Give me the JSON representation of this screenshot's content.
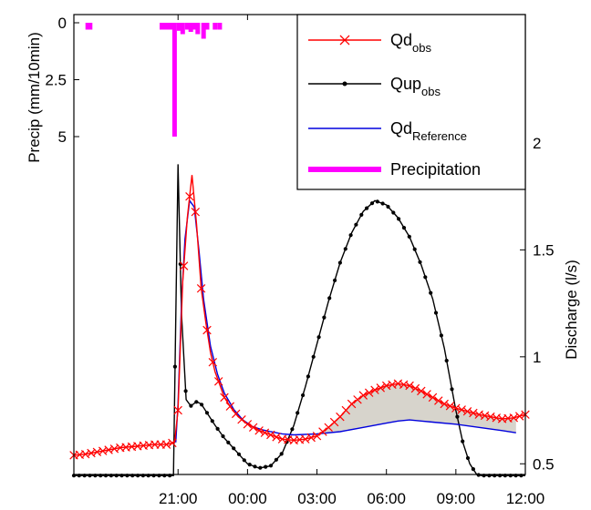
{
  "chart_data": {
    "type": "line",
    "x_axis": {
      "ticks": [
        "21:00",
        "00:00",
        "03:00",
        "06:00",
        "09:00",
        "12:00"
      ],
      "tick_hours": [
        21,
        24,
        27,
        30,
        33,
        36
      ],
      "range_hours": [
        16.5,
        36
      ]
    },
    "y_left": {
      "label": "Precip (mm/10min)",
      "ticks": [
        0,
        2.5,
        5
      ],
      "tick_labels": [
        "0",
        "2.5",
        "5"
      ],
      "reversed": true,
      "range": [
        0,
        5
      ]
    },
    "y_right": {
      "label": "Discharge (l/s)",
      "ticks": [
        0.5,
        1,
        1.5,
        2
      ],
      "tick_labels": [
        "0.5",
        "1",
        "1.5",
        "2"
      ],
      "range": [
        0.45,
        2.6
      ]
    },
    "legend": {
      "position": "top-right",
      "entries": [
        {
          "base": "Qd",
          "sub": "obs"
        },
        {
          "base": "Qup",
          "sub": "obs"
        },
        {
          "base": "Qd",
          "sub": "Reference"
        },
        {
          "base": "Precipitation",
          "sub": ""
        }
      ]
    },
    "colors": {
      "qd_obs": "#ff0000",
      "qup_obs": "#000000",
      "qd_reference": "#0000dd",
      "precipitation": "#ff00ff",
      "shading": "#d7d4cc"
    },
    "shading": {
      "from_hour": 27.0,
      "to_hour": 35.6
    },
    "series": [
      {
        "key": "qd_obs",
        "marker": "x",
        "x": [
          16.5,
          17.0,
          17.5,
          18.0,
          18.5,
          19.0,
          19.5,
          20.0,
          20.5,
          20.85,
          21.0,
          21.2,
          21.4,
          21.6,
          21.8,
          22.0,
          22.2,
          22.4,
          22.6,
          22.8,
          23.0,
          23.3,
          23.6,
          24.0,
          24.5,
          25.0,
          25.5,
          26.0,
          26.5,
          27.0,
          27.5,
          28.0,
          28.5,
          29.0,
          29.5,
          30.0,
          30.5,
          31.0,
          31.5,
          32.0,
          32.5,
          33.0,
          33.5,
          34.0,
          34.5,
          35.0,
          35.5,
          36.0
        ],
        "y": [
          0.54,
          0.545,
          0.555,
          0.565,
          0.575,
          0.58,
          0.585,
          0.59,
          0.59,
          0.6,
          0.75,
          1.35,
          1.65,
          1.85,
          1.62,
          1.32,
          1.16,
          1.02,
          0.93,
          0.87,
          0.81,
          0.76,
          0.72,
          0.685,
          0.655,
          0.635,
          0.615,
          0.61,
          0.615,
          0.63,
          0.67,
          0.72,
          0.78,
          0.82,
          0.845,
          0.865,
          0.875,
          0.865,
          0.84,
          0.81,
          0.78,
          0.76,
          0.745,
          0.73,
          0.72,
          0.71,
          0.715,
          0.73
        ]
      },
      {
        "key": "qup_obs",
        "marker": "dot",
        "x": [
          16.5,
          20.3,
          20.8,
          21.0,
          21.15,
          21.35,
          21.55,
          21.8,
          22.0,
          22.3,
          22.6,
          23.0,
          23.5,
          24.0,
          24.5,
          25.0,
          25.5,
          26.0,
          26.5,
          27.0,
          27.5,
          28.0,
          28.5,
          29.0,
          29.5,
          30.0,
          30.5,
          31.0,
          31.5,
          32.0,
          32.5,
          33.0,
          33.3,
          33.6,
          33.9,
          34.1,
          36.0
        ],
        "y": [
          0.445,
          0.445,
          0.445,
          1.9,
          1.2,
          0.8,
          0.77,
          0.79,
          0.78,
          0.73,
          0.68,
          0.62,
          0.56,
          0.5,
          0.48,
          0.49,
          0.55,
          0.68,
          0.86,
          1.06,
          1.26,
          1.44,
          1.58,
          1.68,
          1.73,
          1.71,
          1.65,
          1.56,
          1.43,
          1.27,
          1.04,
          0.75,
          0.6,
          0.5,
          0.45,
          0.445,
          0.445
        ]
      },
      {
        "key": "qd_reference",
        "marker": "none",
        "x": [
          20.9,
          21.0,
          21.15,
          21.3,
          21.5,
          21.7,
          21.9,
          22.1,
          22.4,
          22.7,
          23.0,
          23.4,
          23.8,
          24.2,
          24.6,
          25.0,
          25.5,
          26.0,
          27.0,
          28.0,
          29.0,
          30.0,
          30.5,
          31.0,
          31.5,
          32.0,
          33.0,
          34.0,
          35.0,
          35.6
        ],
        "y": [
          0.6,
          0.78,
          1.25,
          1.55,
          1.73,
          1.7,
          1.5,
          1.27,
          1.05,
          0.92,
          0.83,
          0.755,
          0.705,
          0.675,
          0.66,
          0.65,
          0.64,
          0.635,
          0.64,
          0.65,
          0.67,
          0.69,
          0.7,
          0.705,
          0.7,
          0.695,
          0.685,
          0.67,
          0.655,
          0.645
        ]
      }
    ],
    "precipitation": {
      "x": [
        17.1,
        17.2,
        20.3,
        20.5,
        20.65,
        20.75,
        20.85,
        21.05,
        21.2,
        21.4,
        21.55,
        21.7,
        21.85,
        22.1,
        22.25,
        22.6,
        22.8
      ],
      "y": [
        0.3,
        0.3,
        0.3,
        0.3,
        0.3,
        0.3,
        5.0,
        0.35,
        0.5,
        0.3,
        0.4,
        0.3,
        0.5,
        0.7,
        0.3,
        0.3,
        0.3
      ]
    }
  }
}
